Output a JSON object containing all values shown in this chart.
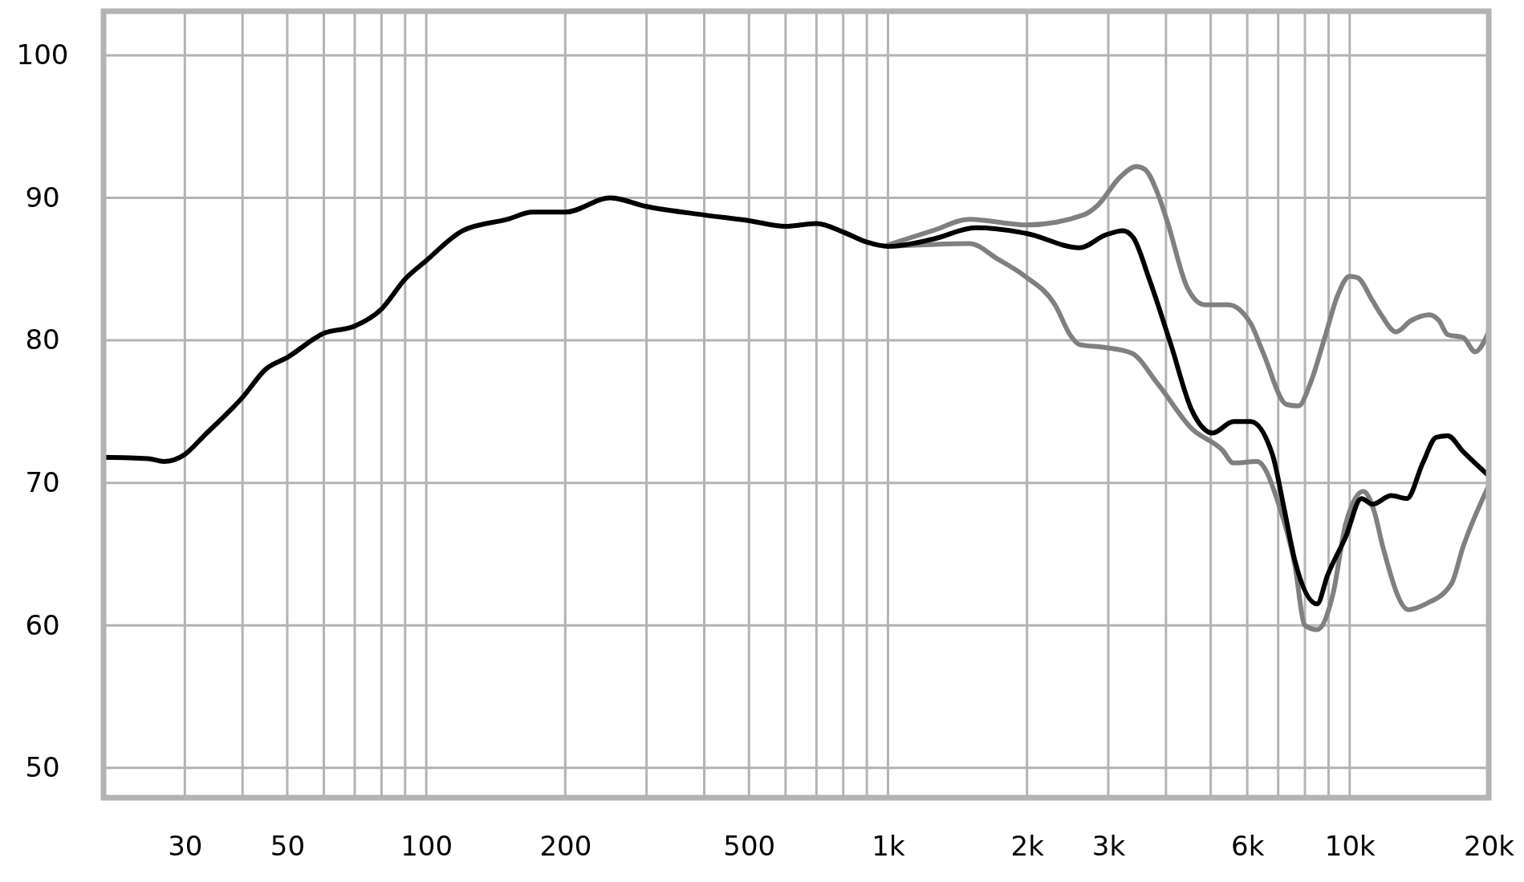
{
  "chart_data": {
    "type": "line",
    "xlim": [
      20,
      20000
    ],
    "ylim": [
      47.9,
      103.1
    ],
    "log": "x",
    "grid": true,
    "marker": "none",
    "line_style": "solid",
    "xticks": [
      30,
      {
        "value": 40,
        "label": null
      },
      50,
      {
        "value": 60,
        "label": null
      },
      {
        "value": 70,
        "label": null
      },
      {
        "value": 80,
        "label": null
      },
      {
        "value": 90,
        "label": null
      },
      100,
      200,
      {
        "value": 300,
        "label": null
      },
      {
        "value": 400,
        "label": null
      },
      500,
      {
        "value": 600,
        "label": null
      },
      {
        "value": 700,
        "label": null
      },
      {
        "value": 800,
        "label": null
      },
      {
        "value": 900,
        "label": null
      },
      {
        "value": 1000,
        "label": "1k"
      },
      {
        "value": 2000,
        "label": "2k"
      },
      {
        "value": 3000,
        "label": "3k"
      },
      {
        "value": 4000,
        "label": null
      },
      {
        "value": 5000,
        "label": null
      },
      {
        "value": 6000,
        "label": "6k"
      },
      {
        "value": 7000,
        "label": null
      },
      {
        "value": 8000,
        "label": null
      },
      {
        "value": 9000,
        "label": null
      },
      {
        "value": 10000,
        "label": "10k"
      },
      {
        "value": 20000,
        "label": "20k"
      }
    ],
    "yticks": [
      50,
      60,
      70,
      80,
      90,
      100
    ],
    "series": [
      {
        "color": "#808080",
        "x": [
          1000,
          1250,
          1500,
          2000,
          2650,
          2850,
          3170,
          3450,
          3600,
          3850,
          4030,
          4450,
          4850,
          5450,
          6100,
          6500,
          7300,
          7750,
          8200,
          8850,
          9400,
          10000,
          10400,
          11200,
          11700,
          12600,
          13600,
          14900,
          15600,
          16300,
          17600,
          18700,
          20000
        ],
        "values": [
          86.7,
          87.7,
          88.5,
          88.1,
          88.8,
          89.5,
          91.4,
          92.2,
          92,
          90.2,
          88.3,
          83.7,
          82.5,
          82.5,
          81.2,
          79.1,
          75.5,
          75.4,
          76.9,
          80.3,
          83.1,
          84.5,
          84.4,
          82.8,
          81.8,
          80.6,
          81.4,
          81.8,
          81.4,
          80.4,
          80.2,
          79.2,
          80.6
        ]
      },
      {
        "color": "#808080",
        "x": [
          1000,
          1500,
          1730,
          1980,
          2300,
          2490,
          2600,
          2950,
          3370,
          3850,
          4550,
          5300,
          5600,
          6300,
          7050,
          7600,
          8000,
          8500,
          9200,
          9800,
          10700,
          11300,
          11800,
          13400,
          14600,
          16600,
          17600,
          20000
        ],
        "values": [
          86.6,
          86.8,
          85.7,
          84.5,
          82.5,
          80.3,
          79.7,
          79.5,
          79.1,
          76.9,
          73.8,
          72.3,
          71.4,
          71.5,
          68.3,
          64.3,
          60,
          59.7,
          62.2,
          67.1,
          69.4,
          68,
          65.5,
          61.1,
          61.5,
          62.9,
          65.5,
          69.8
        ]
      },
      {
        "color": "#000000",
        "x": [
          20,
          25,
          27,
          30,
          33,
          40,
          45,
          50,
          60,
          70,
          80,
          90,
          100,
          120,
          150,
          170,
          200,
          250,
          300,
          400,
          500,
          600,
          700,
          800,
          900,
          1000,
          1250,
          1550,
          2000,
          2600,
          2960,
          3230,
          3400,
          3680,
          4100,
          4550,
          5050,
          5600,
          6100,
          6800,
          7200,
          7600,
          8500,
          8950,
          9800,
          10600,
          11200,
          12300,
          13300,
          14400,
          15400,
          16300,
          17600,
          20000
        ],
        "values": [
          71.8,
          71.7,
          71.5,
          72,
          73.3,
          76,
          78,
          78.8,
          80.5,
          81,
          82.2,
          84.3,
          85.6,
          87.7,
          88.5,
          89,
          89,
          90,
          89.4,
          88.8,
          88.4,
          88,
          88.2,
          87.6,
          86.9,
          86.6,
          87.1,
          87.9,
          87.5,
          86.5,
          87.4,
          87.7,
          87.2,
          84.3,
          79.7,
          75.1,
          73.5,
          74.3,
          74.3,
          72,
          68.3,
          64.6,
          61.5,
          63.5,
          66.2,
          68.9,
          68.5,
          69.1,
          68.9,
          71.4,
          73.2,
          73.3,
          72.2,
          70.5
        ]
      }
    ]
  }
}
